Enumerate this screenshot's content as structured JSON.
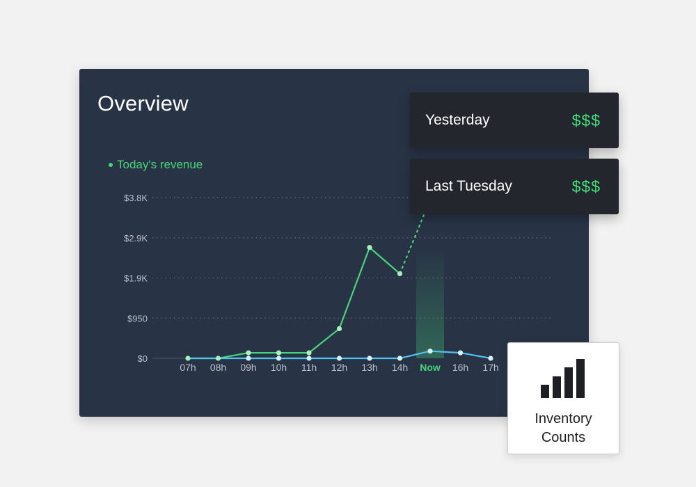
{
  "overview": {
    "title": "Overview",
    "legend_label": "Today's revenue"
  },
  "chart_data": {
    "type": "line",
    "ylabel": "",
    "xlabel": "",
    "y_ticks": [
      "$0",
      "$950",
      "$1.9K",
      "$2.9K",
      "$3.8K"
    ],
    "y_tick_values": [
      0,
      950,
      1900,
      2850,
      3800
    ],
    "ylim": [
      0,
      3800
    ],
    "categories": [
      "07h",
      "08h",
      "09h",
      "10h",
      "11h",
      "12h",
      "13h",
      "14h",
      "Now",
      "16h",
      "17h"
    ],
    "highlight_category": "Now",
    "grid": true,
    "series": [
      {
        "name": "Today's revenue",
        "color": "#46d67a",
        "values": [
          0,
          0,
          130,
          130,
          130,
          700,
          2620,
          2000,
          null,
          null,
          null
        ],
        "projection": [
          {
            "x_index": 7,
            "y": 2000
          },
          {
            "x_index": 7.8,
            "y": 3400
          }
        ]
      },
      {
        "color": "#4fc3f0",
        "values": [
          0,
          0,
          0,
          0,
          0,
          0,
          0,
          0,
          170,
          130,
          0
        ]
      }
    ]
  },
  "comparisons": [
    {
      "label": "Yesterday",
      "value": "$$$"
    },
    {
      "label": "Last Tuesday",
      "value": "$$$"
    }
  ],
  "inventory": {
    "label_line1": "Inventory",
    "label_line2": "Counts",
    "icon": "bar-chart-icon"
  },
  "colors": {
    "panel_bg": "#283345",
    "revenue_green": "#46d67a",
    "baseline_blue": "#4fc3f0",
    "money_green": "#3ee07a"
  }
}
